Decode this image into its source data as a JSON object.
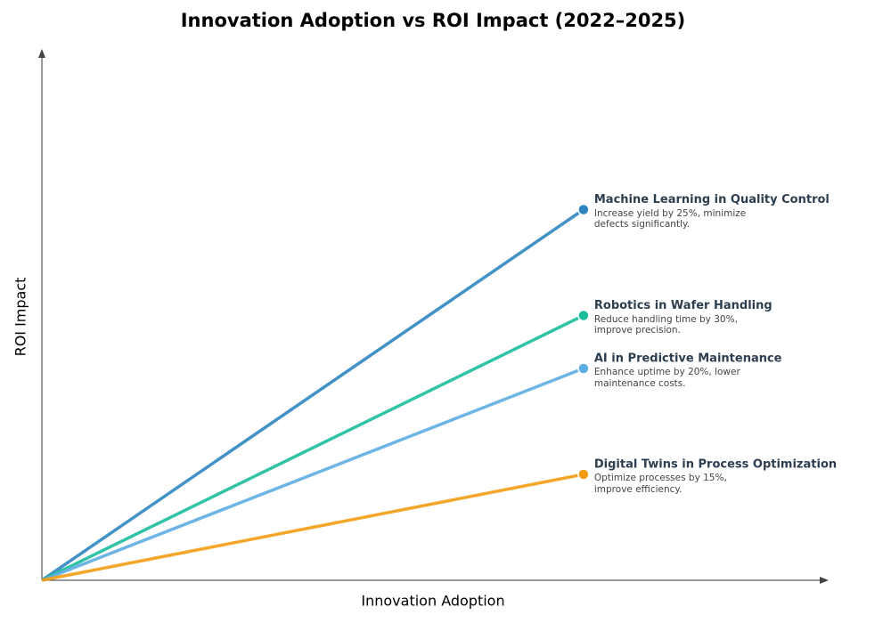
{
  "chart_data": {
    "type": "line",
    "title": "Innovation Adoption vs ROI Impact (2022–2025)",
    "x_label": "Innovation Adoption",
    "y_label": "ROI Impact",
    "xlim": [
      0,
      100
    ],
    "ylim": [
      0,
      100
    ],
    "series": [
      {
        "name": "Machine Learning in Quality Control",
        "description": "Increase yield by 25%, minimize defects significantly.",
        "color": "#2e86c1",
        "x": [
          0,
          69
        ],
        "values": [
          0,
          70
        ]
      },
      {
        "name": "Robotics in Wafer Handling",
        "description": "Reduce handling time by 30%, improve precision.",
        "color": "#1abc9c",
        "x": [
          0,
          69
        ],
        "values": [
          0,
          50
        ]
      },
      {
        "name": "AI in Predictive Maintenance",
        "description": "Enhance uptime by 20%, lower maintenance costs.",
        "color": "#5dade2",
        "x": [
          0,
          69
        ],
        "values": [
          0,
          40
        ]
      },
      {
        "name": "Digital Twins in Process Optimization",
        "description": "Optimize processes by 15%, improve efficiency.",
        "color": "#f39c12",
        "x": [
          0,
          69
        ],
        "values": [
          0,
          20
        ]
      }
    ]
  }
}
